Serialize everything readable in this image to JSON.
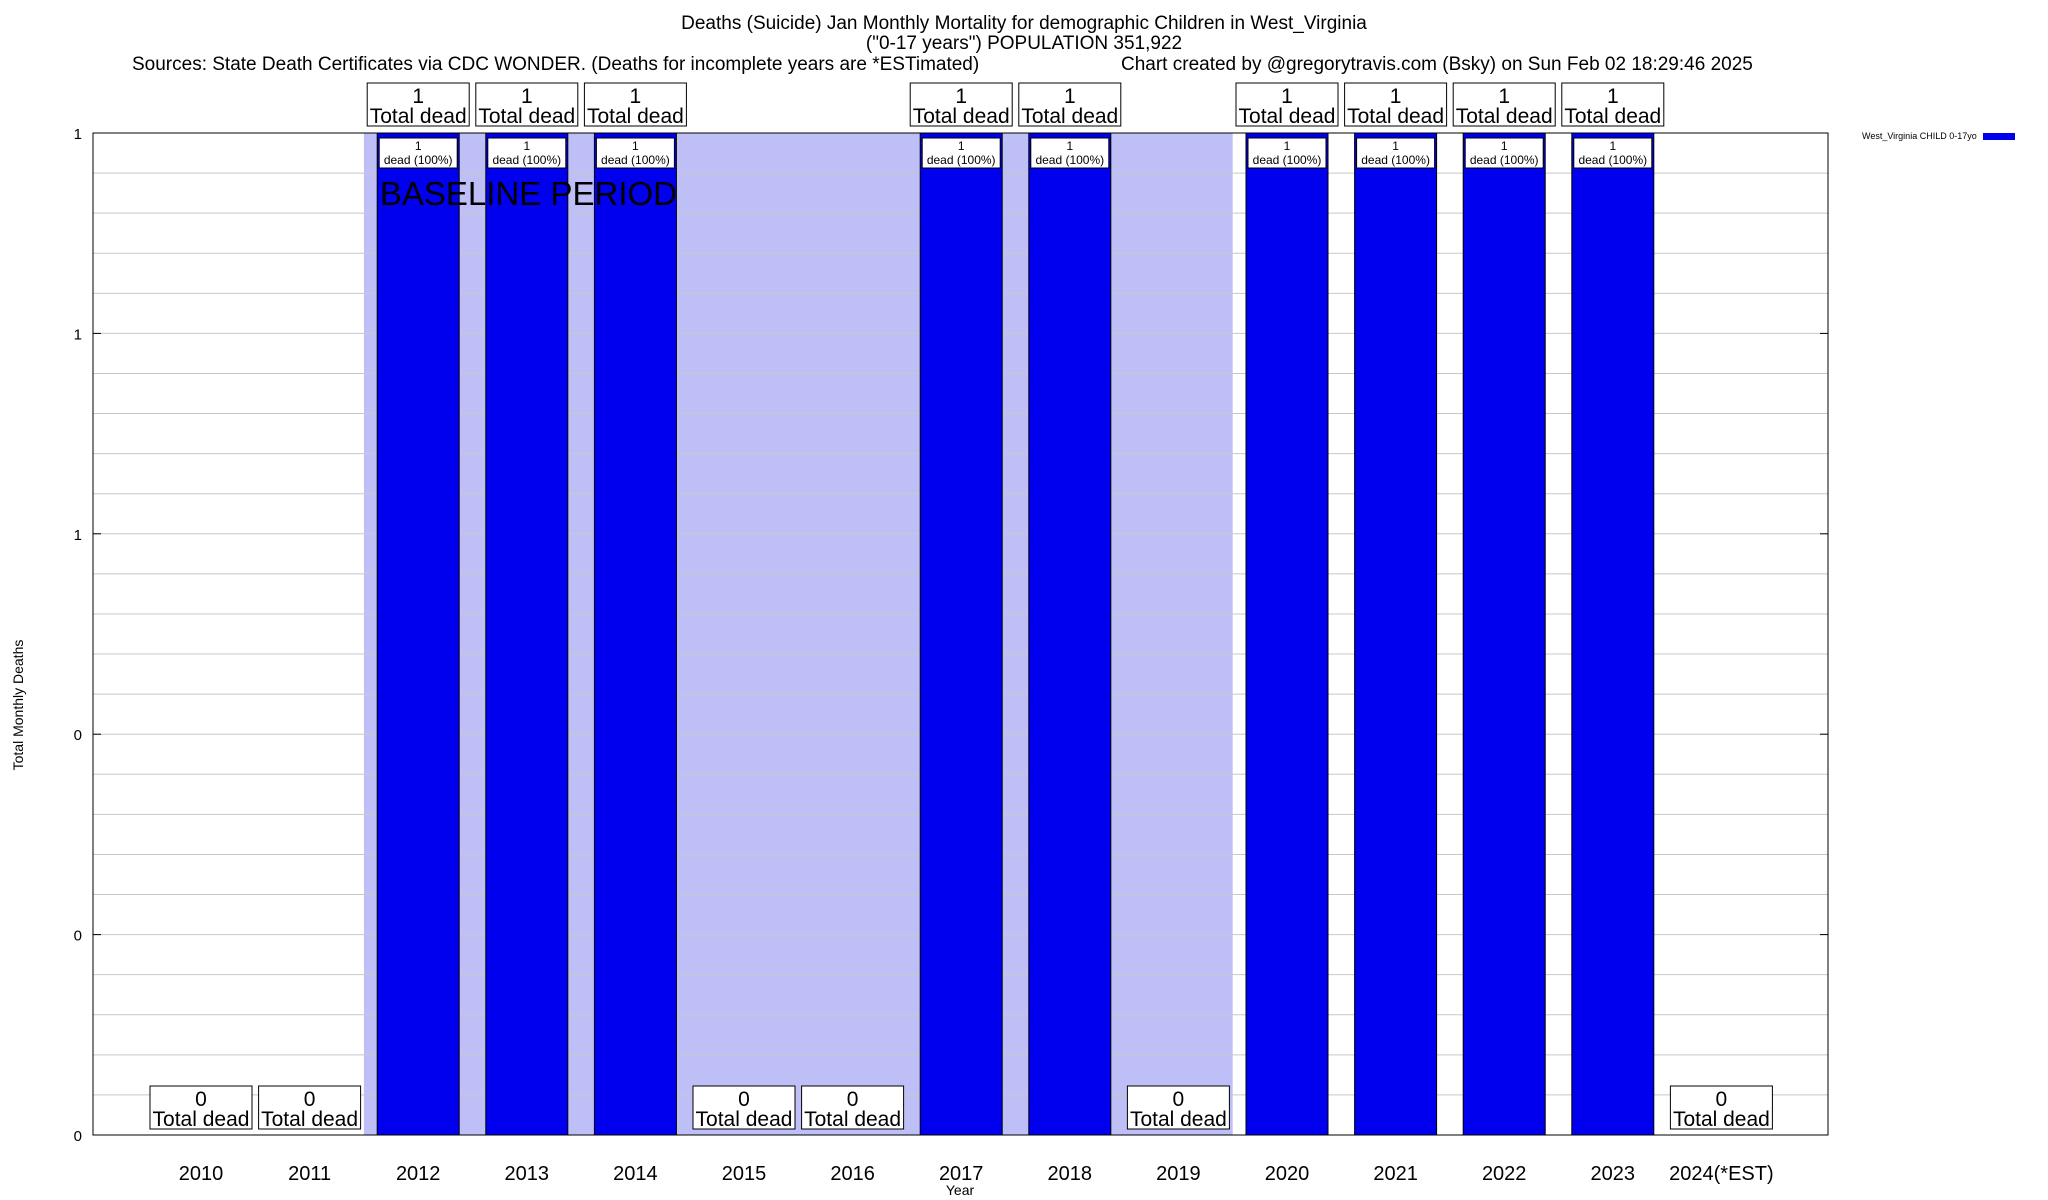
{
  "header": {
    "title_line1": "Deaths (Suicide) Jan Monthly Mortality for demographic Children in West_Virginia",
    "title_line2": "(\"0-17 years\") POPULATION 351,922",
    "sources": "Sources: State Death Certificates via CDC WONDER. (Deaths for incomplete years are *ESTimated)",
    "credit": "Chart created by @gregorytravis.com (Bsky) on Sun Feb 02 18:29:46 2025"
  },
  "chart_data": {
    "type": "bar",
    "title": "Deaths (Suicide) Jan Monthly Mortality for demographic Children in West_Virginia",
    "xlabel": "Year",
    "ylabel": "Total Monthly Deaths",
    "categories": [
      "2010",
      "2011",
      "2012",
      "2013",
      "2014",
      "2015",
      "2016",
      "2017",
      "2018",
      "2019",
      "2020",
      "2021",
      "2022",
      "2023",
      "2024(*EST)"
    ],
    "series": [
      {
        "name": "West_Virginia CHILD 0-17yo",
        "color": "#0000ee",
        "values": [
          0,
          0,
          1,
          1,
          1,
          0,
          0,
          1,
          1,
          0,
          1,
          1,
          1,
          1,
          0
        ]
      }
    ],
    "total_labels": [
      "0\nTotal dead",
      "0\nTotal dead",
      "1\nTotal dead",
      "1\nTotal dead",
      "1\nTotal dead",
      "0\nTotal dead",
      "0\nTotal dead",
      "1\nTotal dead",
      "1\nTotal dead",
      "0\nTotal dead",
      "1\nTotal dead",
      "1\nTotal dead",
      "1\nTotal dead",
      "1\nTotal dead",
      "0\nTotal dead"
    ],
    "bar_labels": [
      "",
      "",
      "1\ndead (100%)",
      "1\ndead (100%)",
      "1\ndead (100%)",
      "",
      "",
      "1\ndead (100%)",
      "1\ndead (100%)",
      "",
      "1\ndead (100%)",
      "1\ndead (100%)",
      "1\ndead (100%)",
      "1\ndead (100%)",
      ""
    ],
    "yticks": [
      {
        "value": 0,
        "label": "0"
      },
      {
        "value": 0.2,
        "label": "0"
      },
      {
        "value": 0.4,
        "label": "0"
      },
      {
        "value": 0.6,
        "label": "1"
      },
      {
        "value": 0.8,
        "label": "1"
      },
      {
        "value": 1.0,
        "label": "1"
      }
    ],
    "ylim": [
      0,
      1
    ],
    "grid": true,
    "baseline": {
      "label": "BASELINE PERIOD",
      "from": "2012",
      "to": "2019",
      "color": "#bfbff7"
    },
    "legend_position": "top-right"
  }
}
